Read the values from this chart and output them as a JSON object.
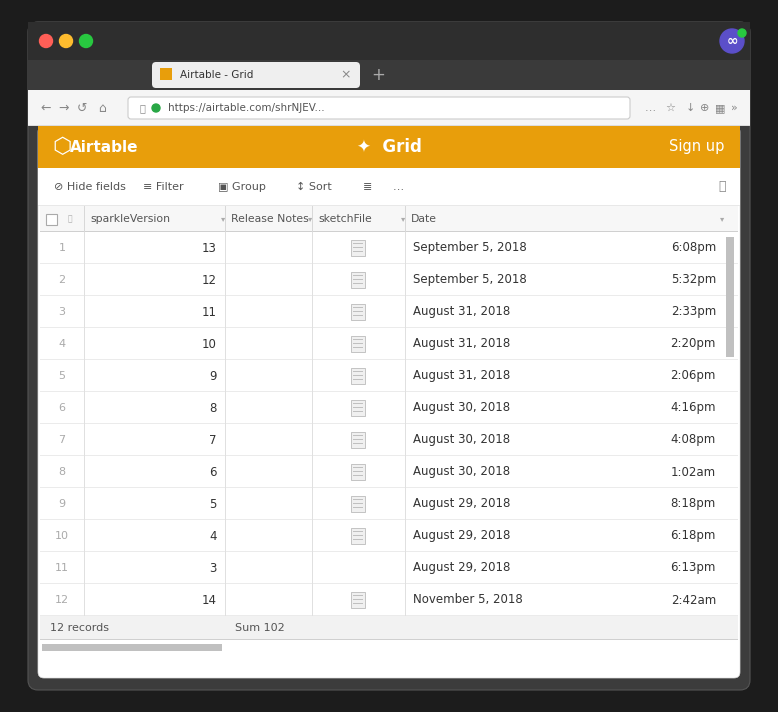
{
  "browser_bg": "#1c1c1c",
  "tab_text": "Airtable - Grid",
  "browser_url": "https://airtable.com/shrNJEV...",
  "airtable_header_bg": "#e89e0b",
  "signup_text": "Sign up",
  "rows": [
    {
      "row_num": 1,
      "version": 13,
      "date": "September 5, 2018",
      "time": "6:08pm",
      "has_file": true
    },
    {
      "row_num": 2,
      "version": 12,
      "date": "September 5, 2018",
      "time": "5:32pm",
      "has_file": true
    },
    {
      "row_num": 3,
      "version": 11,
      "date": "August 31, 2018",
      "time": "2:33pm",
      "has_file": true
    },
    {
      "row_num": 4,
      "version": 10,
      "date": "August 31, 2018",
      "time": "2:20pm",
      "has_file": true
    },
    {
      "row_num": 5,
      "version": 9,
      "date": "August 31, 2018",
      "time": "2:06pm",
      "has_file": true
    },
    {
      "row_num": 6,
      "version": 8,
      "date": "August 30, 2018",
      "time": "4:16pm",
      "has_file": true
    },
    {
      "row_num": 7,
      "version": 7,
      "date": "August 30, 2018",
      "time": "4:08pm",
      "has_file": true
    },
    {
      "row_num": 8,
      "version": 6,
      "date": "August 30, 2018",
      "time": "1:02am",
      "has_file": true
    },
    {
      "row_num": 9,
      "version": 5,
      "date": "August 29, 2018",
      "time": "8:18pm",
      "has_file": true
    },
    {
      "row_num": 10,
      "version": 4,
      "date": "August 29, 2018",
      "time": "6:18pm",
      "has_file": true
    },
    {
      "row_num": 11,
      "version": 3,
      "date": "August 29, 2018",
      "time": "6:13pm",
      "has_file": false
    },
    {
      "row_num": 12,
      "version": 14,
      "date": "November 5, 2018",
      "time": "2:42am",
      "has_file": true
    }
  ],
  "footer_text": "12 records",
  "footer_sum": "Sum 102",
  "col_headers": [
    "sparkleVersion",
    "Release Notes",
    "sketchFile",
    "Date"
  ],
  "grid_line_color": "#e0e0e0",
  "header_bg": "#f7f7f7",
  "text_dark": "#333333",
  "text_muted": "#aaaaaa",
  "text_header": "#666666",
  "orange_bg": "#e89e0b",
  "white": "#ffffff",
  "footer_bg": "#f2f2f2"
}
